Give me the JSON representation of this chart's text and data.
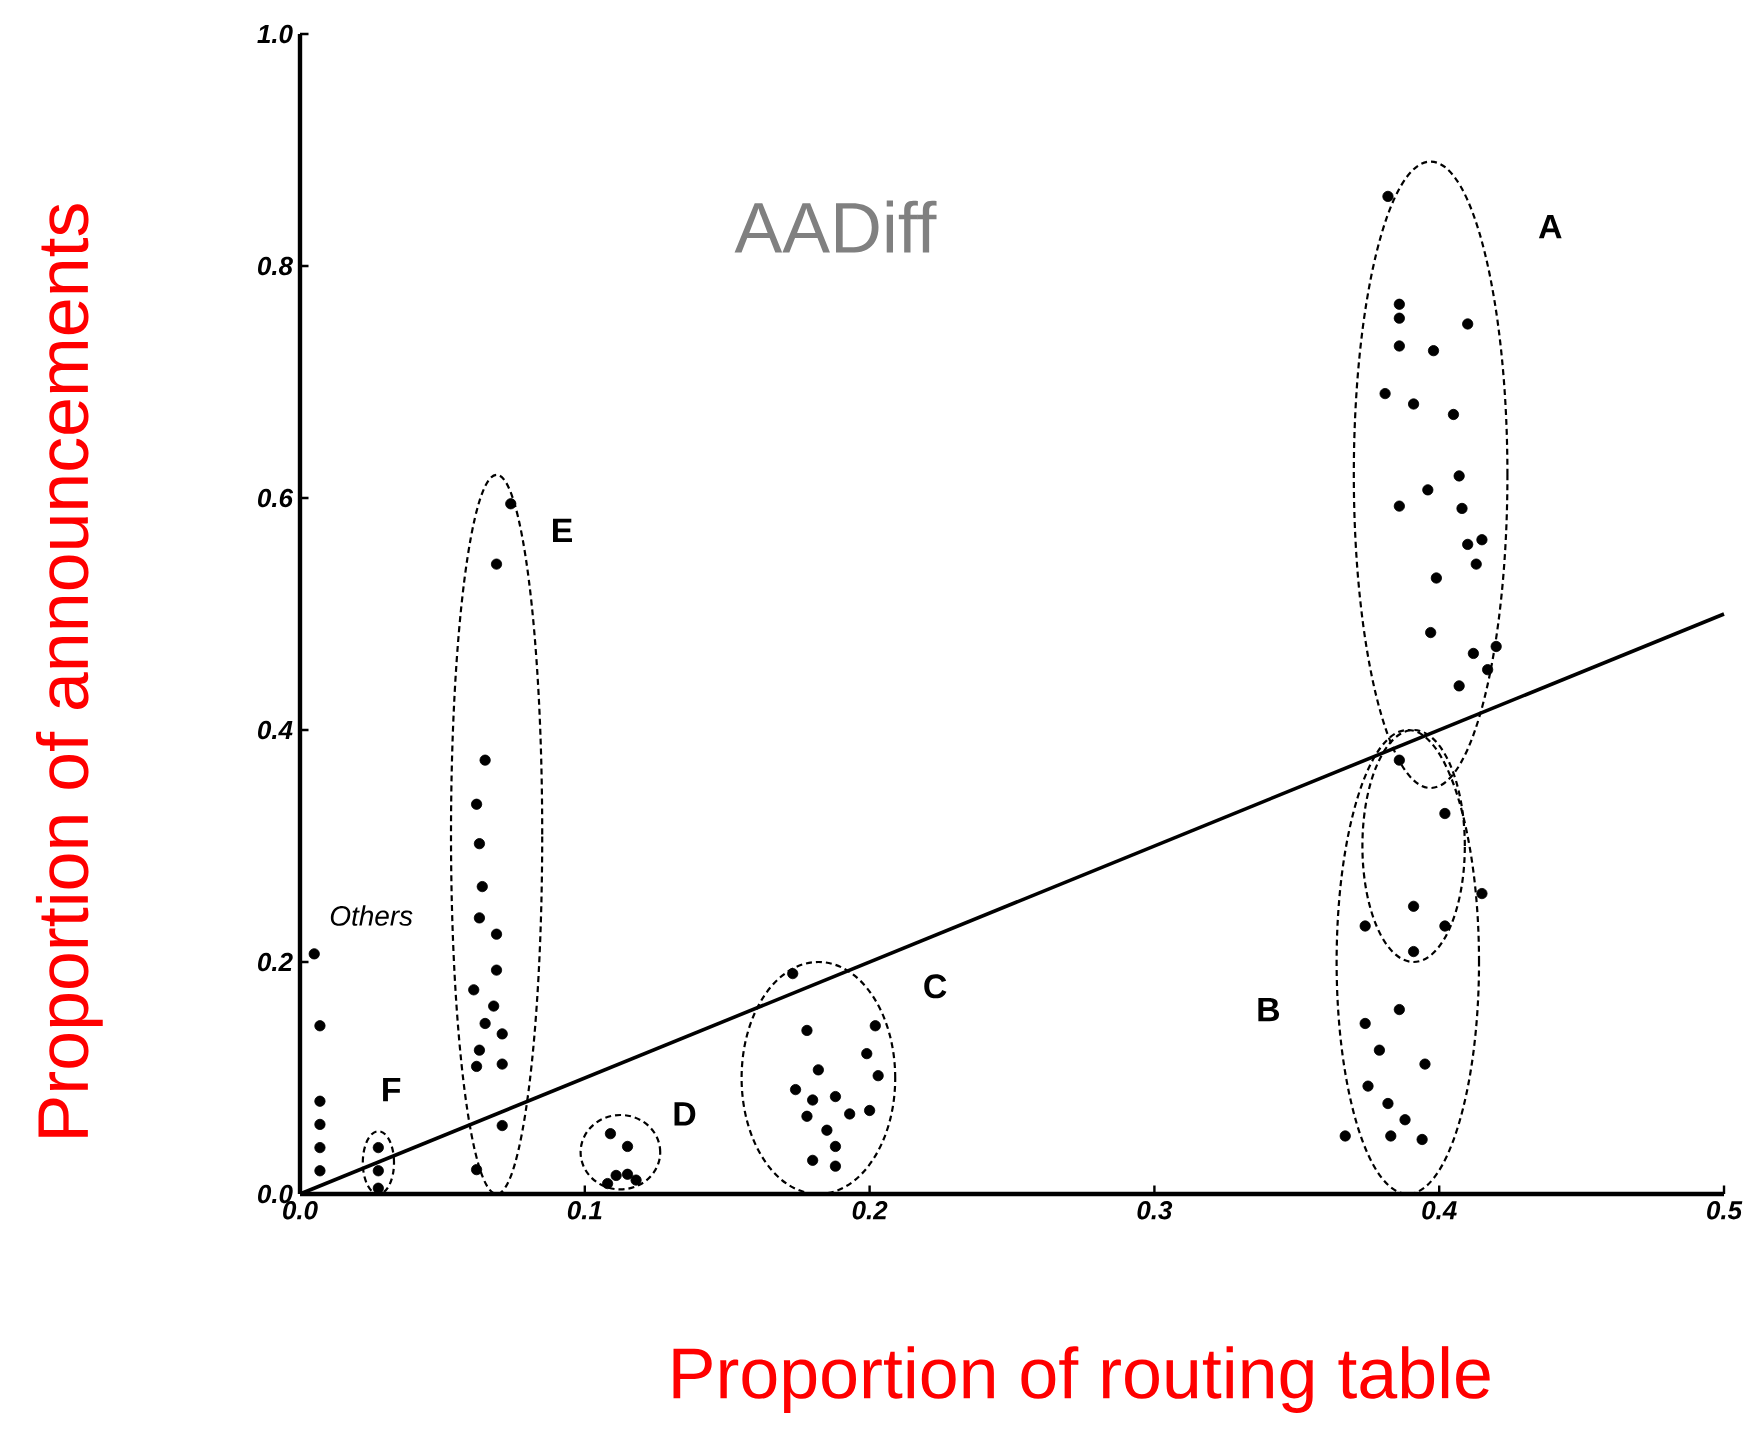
{
  "chart_data": {
    "type": "scatter",
    "title": "AADiff",
    "xlabel": "Proportion of routing table",
    "ylabel": "Proportion of announcements",
    "xlim": [
      0,
      0.5
    ],
    "ylim": [
      0,
      1.0
    ],
    "xticks": [
      {
        "value": 0,
        "label": "0.0"
      },
      0.1,
      0.2,
      0.3,
      0.4,
      0.5
    ],
    "yticks": [
      {
        "value": 0,
        "label": "0.0"
      },
      0.2,
      0.4,
      0.6,
      0.8,
      {
        "value": 1.0,
        "label": "1.0"
      }
    ],
    "grid": false,
    "marker": "circle",
    "series": [
      {
        "color": "#000000",
        "x": [
          0.074,
          0.069,
          0.065,
          0.062,
          0.063,
          0.064,
          0.063,
          0.069,
          0.069,
          0.061,
          0.068,
          0.065,
          0.071,
          0.063,
          0.071,
          0.062,
          0.071,
          0.062,
          0.005,
          0.007,
          0.007,
          0.007,
          0.007,
          0.007,
          0.0275,
          0.0275,
          0.0275,
          0.382,
          0.386,
          0.386,
          0.41,
          0.386,
          0.398,
          0.381,
          0.391,
          0.405,
          0.407,
          0.396,
          0.386,
          0.408,
          0.41,
          0.415,
          0.413,
          0.399,
          0.397,
          0.412,
          0.42,
          0.417,
          0.407,
          0.386,
          0.402,
          0.415,
          0.391,
          0.402,
          0.374,
          0.391,
          0.386,
          0.374,
          0.379,
          0.395,
          0.375,
          0.382,
          0.388,
          0.383,
          0.394,
          0.367,
          0.109,
          0.115,
          0.111,
          0.115,
          0.108,
          0.118,
          0.173,
          0.178,
          0.202,
          0.199,
          0.203,
          0.182,
          0.174,
          0.18,
          0.188,
          0.193,
          0.2,
          0.178,
          0.185,
          0.188,
          0.18,
          0.188
        ],
        "values": [
          0.595,
          0.543,
          0.374,
          0.336,
          0.302,
          0.265,
          0.238,
          0.224,
          0.193,
          0.176,
          0.162,
          0.147,
          0.138,
          0.124,
          0.112,
          0.11,
          0.059,
          0.021,
          0.207,
          0.145,
          0.08,
          0.06,
          0.04,
          0.02,
          0.04,
          0.02,
          0.005,
          0.86,
          0.767,
          0.755,
          0.75,
          0.731,
          0.727,
          0.69,
          0.681,
          0.672,
          0.619,
          0.607,
          0.593,
          0.591,
          0.56,
          0.564,
          0.543,
          0.531,
          0.484,
          0.466,
          0.472,
          0.452,
          0.438,
          0.374,
          0.328,
          0.259,
          0.248,
          0.231,
          0.231,
          0.209,
          0.159,
          0.147,
          0.124,
          0.112,
          0.093,
          0.078,
          0.064,
          0.05,
          0.047,
          0.05,
          0.052,
          0.041,
          0.016,
          0.017,
          0.009,
          0.012,
          0.19,
          0.141,
          0.145,
          0.121,
          0.102,
          0.107,
          0.09,
          0.081,
          0.084,
          0.069,
          0.072,
          0.067,
          0.055,
          0.041,
          0.029,
          0.024
        ]
      },
      {
        "type": "line",
        "color": "#000000",
        "marker": "none",
        "x": [
          0,
          0.5
        ],
        "values": [
          0,
          0.5
        ]
      }
    ],
    "annotations": [
      "A",
      "B",
      "C",
      "D",
      "E",
      "F",
      "Others"
    ]
  }
}
